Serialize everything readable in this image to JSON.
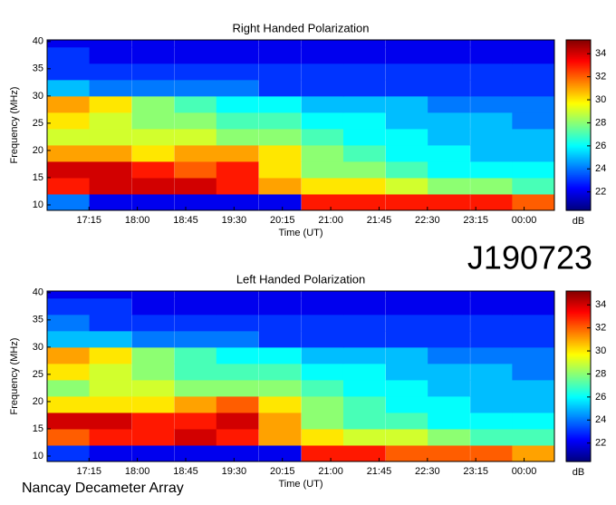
{
  "chart_data": [
    {
      "type": "heatmap",
      "title": "Right Handed Polarization",
      "xlabel": "Time (UT)",
      "ylabel": "Frequency (MHz)",
      "colormap": "jet",
      "x": [
        16.93,
        17.58,
        18.24,
        18.9,
        19.55,
        20.21,
        20.87,
        21.52,
        22.18,
        22.83,
        23.49,
        24.14
      ],
      "y": [
        10.5,
        13.5,
        16.5,
        19.5,
        22.5,
        25.5,
        28.5,
        31.5,
        34.5,
        37.5,
        40.5
      ],
      "values": [
        [
          24,
          22,
          22,
          22,
          22,
          22,
          33,
          33,
          33,
          33,
          33,
          32
        ],
        [
          33,
          34,
          34,
          34,
          33,
          31,
          30,
          30,
          29,
          28,
          28,
          27
        ],
        [
          34,
          34,
          33,
          32,
          33,
          30,
          28,
          28,
          27,
          26,
          26,
          26
        ],
        [
          31,
          31,
          30,
          31,
          31,
          30,
          28,
          27,
          26,
          26,
          25,
          25
        ],
        [
          29,
          29,
          29,
          29,
          28,
          28,
          27,
          26,
          26,
          25,
          25,
          25
        ],
        [
          30,
          29,
          28,
          28,
          27,
          27,
          26,
          26,
          25,
          25,
          25,
          24
        ],
        [
          31,
          30,
          28,
          27,
          26,
          26,
          25,
          25,
          25,
          24,
          24,
          24
        ],
        [
          25,
          24,
          24,
          24,
          24,
          23,
          23,
          23,
          23,
          23,
          23,
          23
        ],
        [
          23,
          23,
          23,
          23,
          23,
          23,
          23,
          23,
          23,
          23,
          23,
          23
        ],
        [
          23,
          22,
          22,
          22,
          22,
          22,
          22,
          22,
          22,
          22,
          22,
          22
        ],
        [
          22,
          22,
          22,
          22,
          22,
          22,
          22,
          22,
          22,
          22,
          22,
          22
        ]
      ],
      "xlim": [
        16.6,
        24.47
      ],
      "ylim": [
        9,
        40.3
      ],
      "xticks": [
        {
          "value": 17.25,
          "label": "17:15"
        },
        {
          "value": 18,
          "label": "18:00"
        },
        {
          "value": 18.75,
          "label": "18:45"
        },
        {
          "value": 19.5,
          "label": "19:30"
        },
        {
          "value": 20.25,
          "label": "20:15"
        },
        {
          "value": 21,
          "label": "21:00"
        },
        {
          "value": 21.75,
          "label": "21:45"
        },
        {
          "value": 22.5,
          "label": "22:30"
        },
        {
          "value": 23.25,
          "label": "23:15"
        },
        {
          "value": 24,
          "label": "00:00"
        }
      ],
      "yticks": [
        10,
        15,
        20,
        25,
        30,
        35,
        40
      ],
      "colorbar": {
        "label": "dB",
        "lim": [
          20.4,
          35.2
        ],
        "ticks": [
          22,
          24,
          26,
          28,
          30,
          32,
          34
        ]
      }
    },
    {
      "type": "heatmap",
      "title": "Left Handed Polarization",
      "xlabel": "Time (UT)",
      "ylabel": "Frequency (MHz)",
      "colormap": "jet",
      "x": [
        16.93,
        17.58,
        18.24,
        18.9,
        19.55,
        20.21,
        20.87,
        21.52,
        22.18,
        22.83,
        23.49,
        24.14
      ],
      "y": [
        10.5,
        13.5,
        16.5,
        19.5,
        22.5,
        25.5,
        28.5,
        31.5,
        34.5,
        37.5,
        40.5
      ],
      "values": [
        [
          23,
          22,
          22,
          22,
          22,
          22,
          33,
          33,
          32,
          32,
          32,
          31
        ],
        [
          32,
          33,
          33,
          34,
          33,
          31,
          30,
          29,
          29,
          28,
          27,
          27
        ],
        [
          34,
          34,
          33,
          33,
          34,
          31,
          28,
          27,
          27,
          26,
          26,
          26
        ],
        [
          30,
          30,
          30,
          31,
          32,
          30,
          28,
          27,
          26,
          26,
          25,
          25
        ],
        [
          28,
          29,
          29,
          28,
          28,
          28,
          27,
          26,
          26,
          25,
          25,
          25
        ],
        [
          30,
          29,
          28,
          27,
          27,
          27,
          26,
          26,
          25,
          25,
          25,
          24
        ],
        [
          31,
          30,
          28,
          27,
          26,
          26,
          25,
          25,
          25,
          24,
          24,
          24
        ],
        [
          25,
          25,
          24,
          24,
          24,
          23,
          23,
          23,
          23,
          23,
          23,
          23
        ],
        [
          24,
          23,
          23,
          23,
          23,
          23,
          23,
          23,
          23,
          23,
          23,
          23
        ],
        [
          23,
          23,
          22,
          22,
          22,
          22,
          22,
          22,
          22,
          22,
          22,
          22
        ],
        [
          22,
          22,
          22,
          22,
          22,
          22,
          22,
          22,
          22,
          22,
          22,
          22
        ]
      ],
      "xlim": [
        16.6,
        24.47
      ],
      "ylim": [
        9,
        40.3
      ],
      "xticks": [
        {
          "value": 17.25,
          "label": "17:15"
        },
        {
          "value": 18,
          "label": "18:00"
        },
        {
          "value": 18.75,
          "label": "18:45"
        },
        {
          "value": 19.5,
          "label": "19:30"
        },
        {
          "value": 20.25,
          "label": "20:15"
        },
        {
          "value": 21,
          "label": "21:00"
        },
        {
          "value": 21.75,
          "label": "21:45"
        },
        {
          "value": 22.5,
          "label": "22:30"
        },
        {
          "value": 23.25,
          "label": "23:15"
        },
        {
          "value": 24,
          "label": "00:00"
        }
      ],
      "yticks": [
        10,
        15,
        20,
        25,
        30,
        35,
        40
      ],
      "colorbar": {
        "label": "dB",
        "lim": [
          20.4,
          35.2
        ],
        "ticks": [
          22,
          24,
          26,
          28,
          30,
          32,
          34
        ]
      }
    }
  ],
  "source_label": "J190723",
  "footer": "Nancay Decameter Array"
}
